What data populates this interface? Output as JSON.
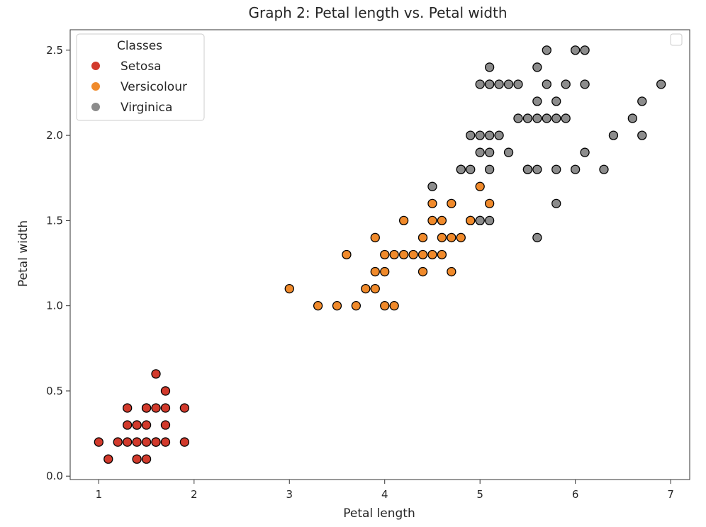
{
  "chart_data": {
    "type": "scatter",
    "title": "Graph 2: Petal length vs. Petal width",
    "xlabel": "Petal length",
    "ylabel": "Petal width",
    "xlim": [
      0.7,
      7.2
    ],
    "ylim": [
      -0.02,
      2.62
    ],
    "xticks": [
      "1",
      "2",
      "3",
      "4",
      "5",
      "6",
      "7"
    ],
    "yticks": [
      "0.0",
      "0.5",
      "1.0",
      "1.5",
      "2.0",
      "2.5"
    ],
    "grid": false,
    "legend": {
      "title": "Classes",
      "position": "upper-left"
    },
    "series": [
      {
        "name": "Setosa",
        "color": "#d23a2c",
        "x": [
          1.0,
          1.1,
          1.2,
          1.3,
          1.3,
          1.3,
          1.4,
          1.4,
          1.4,
          1.4,
          1.5,
          1.5,
          1.5,
          1.5,
          1.5,
          1.6,
          1.6,
          1.6,
          1.6,
          1.7,
          1.7,
          1.7,
          1.7,
          1.9,
          1.9
        ],
        "y": [
          0.2,
          0.1,
          0.2,
          0.2,
          0.3,
          0.4,
          0.1,
          0.2,
          0.3,
          0.3,
          0.1,
          0.2,
          0.3,
          0.4,
          0.4,
          0.2,
          0.4,
          0.6,
          0.2,
          0.2,
          0.3,
          0.4,
          0.5,
          0.2,
          0.4
        ]
      },
      {
        "name": "Versicolour",
        "color": "#f08a2b",
        "x": [
          3.0,
          3.3,
          3.5,
          3.6,
          3.7,
          3.8,
          3.9,
          3.9,
          3.9,
          4.0,
          4.0,
          4.0,
          4.1,
          4.1,
          4.2,
          4.2,
          4.3,
          4.4,
          4.4,
          4.4,
          4.5,
          4.5,
          4.5,
          4.6,
          4.6,
          4.6,
          4.7,
          4.7,
          4.7,
          4.8,
          4.9,
          4.9,
          5.0,
          5.0,
          5.1
        ],
        "y": [
          1.1,
          1.0,
          1.0,
          1.3,
          1.0,
          1.1,
          1.1,
          1.2,
          1.4,
          1.0,
          1.2,
          1.3,
          1.0,
          1.3,
          1.3,
          1.5,
          1.3,
          1.2,
          1.3,
          1.4,
          1.3,
          1.5,
          1.6,
          1.3,
          1.4,
          1.5,
          1.2,
          1.4,
          1.6,
          1.4,
          1.5,
          1.5,
          1.7,
          1.5,
          1.6
        ]
      },
      {
        "name": "Virginica",
        "color": "#8c8c8c",
        "x": [
          4.5,
          4.8,
          4.8,
          4.9,
          4.9,
          5.0,
          5.0,
          5.0,
          5.0,
          5.1,
          5.1,
          5.1,
          5.1,
          5.1,
          5.1,
          5.1,
          5.2,
          5.2,
          5.3,
          5.3,
          5.4,
          5.4,
          5.5,
          5.5,
          5.5,
          5.6,
          5.6,
          5.6,
          5.6,
          5.6,
          5.7,
          5.7,
          5.7,
          5.8,
          5.8,
          5.8,
          5.8,
          5.9,
          5.9,
          6.0,
          6.0,
          6.1,
          6.1,
          6.1,
          6.3,
          6.4,
          6.6,
          6.7,
          6.7,
          6.9
        ],
        "y": [
          1.7,
          1.8,
          1.8,
          1.8,
          2.0,
          1.5,
          1.9,
          2.0,
          2.3,
          1.5,
          1.8,
          1.9,
          2.0,
          2.3,
          2.4,
          2.3,
          2.0,
          2.3,
          1.9,
          2.3,
          2.1,
          2.3,
          1.8,
          1.8,
          2.1,
          1.4,
          1.8,
          2.1,
          2.2,
          2.4,
          2.1,
          2.3,
          2.5,
          1.6,
          1.8,
          2.2,
          2.1,
          2.1,
          2.3,
          1.8,
          2.5,
          1.9,
          2.3,
          2.5,
          1.8,
          2.0,
          2.1,
          2.0,
          2.2,
          2.3
        ]
      }
    ]
  }
}
